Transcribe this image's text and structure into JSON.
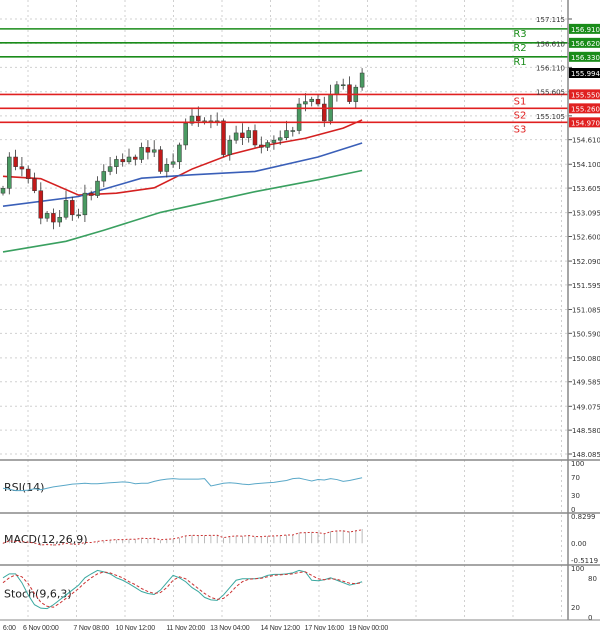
{
  "chart_data": {
    "type": "candlestick",
    "price_axis": {
      "ylim": [
        148.085,
        157.115
      ],
      "ticks": [
        "157.115",
        "156.610",
        "156.110",
        "155.605",
        "155.105",
        "154.610",
        "154.100",
        "153.605",
        "153.095",
        "152.600",
        "152.090",
        "151.595",
        "151.085",
        "150.590",
        "150.080",
        "149.585",
        "149.075",
        "148.580",
        "148.085"
      ]
    },
    "x_tick_labels": [
      "6:00",
      "6 Nov 00:00",
      "7 Nov 08:00",
      "10 Nov 12:00",
      "11 Nov 20:00",
      "13 Nov 04:00",
      "14 Nov 12:00",
      "17 Nov 16:00",
      "19 Nov 00:00"
    ],
    "x_tick_index": [
      1,
      6,
      14,
      21,
      29,
      36,
      44,
      51,
      58
    ],
    "closes": [
      153.6,
      154.25,
      154.05,
      154.0,
      153.8,
      153.55,
      152.98,
      153.08,
      152.9,
      153.0,
      153.35,
      153.05,
      153.05,
      153.5,
      153.45,
      153.75,
      153.95,
      154.05,
      154.2,
      154.15,
      154.25,
      154.2,
      154.45,
      154.35,
      154.4,
      153.95,
      154.1,
      154.15,
      154.5,
      154.95,
      155.1,
      155.0,
      155.0,
      155.0,
      155.0,
      154.3,
      154.6,
      154.75,
      154.65,
      154.8,
      154.5,
      154.45,
      154.55,
      154.6,
      154.65,
      154.8,
      154.8,
      155.35,
      155.4,
      155.45,
      155.35,
      155.0,
      155.55,
      155.75,
      155.75,
      155.4,
      155.7,
      155.994
    ],
    "current_price": "155.994",
    "levels": [
      {
        "name": "R3",
        "value": "156.910",
        "color": "#1a8c1a"
      },
      {
        "name": "R2",
        "value": "156.620",
        "color": "#1a8c1a"
      },
      {
        "name": "R1",
        "value": "156.330",
        "color": "#1a8c1a"
      },
      {
        "name": "S1",
        "value": "155.550",
        "color": "#e02020"
      },
      {
        "name": "S2",
        "value": "155.260",
        "color": "#e02020"
      },
      {
        "name": "S3",
        "value": "154.970",
        "color": "#e02020"
      }
    ],
    "moving_averages": [
      {
        "color": "#d42020",
        "idx": [
          0,
          6,
          12,
          18,
          24,
          30,
          36,
          42,
          48,
          54,
          57
        ],
        "values": [
          153.85,
          153.8,
          153.46,
          153.5,
          153.61,
          154.0,
          154.3,
          154.5,
          154.64,
          154.85,
          155.02
        ]
      },
      {
        "color": "#3a5fb8",
        "idx": [
          0,
          12,
          22,
          30,
          40,
          50,
          57
        ],
        "values": [
          153.23,
          153.43,
          153.81,
          153.88,
          153.95,
          154.25,
          154.54
        ]
      },
      {
        "color": "#3aa060",
        "idx": [
          0,
          10,
          16,
          25,
          40,
          50,
          57
        ],
        "values": [
          152.28,
          152.5,
          152.73,
          153.1,
          153.53,
          153.78,
          153.97
        ]
      }
    ],
    "colors": {
      "bull": "#4a9a62",
      "bear": "#c21a1a",
      "grid": "#d0d0d0"
    },
    "indicators": {
      "rsi": {
        "label": "RSI(14)",
        "ticks": [
          "100",
          "70",
          "30",
          "0"
        ],
        "values": [
          45,
          43,
          40,
          40,
          41,
          44,
          42,
          45,
          48,
          50,
          52,
          54,
          55,
          56,
          55,
          55,
          56,
          57,
          58,
          59,
          58,
          55,
          56,
          56,
          60,
          63,
          65,
          66,
          65,
          65,
          65,
          65,
          66,
          50,
          53,
          56,
          57,
          56,
          54,
          53,
          55,
          56,
          57,
          58,
          60,
          62,
          66,
          67,
          64,
          61,
          64,
          63,
          66,
          64,
          60,
          62,
          65,
          68
        ]
      },
      "macd": {
        "label": "MACD(12,26,9)",
        "ticks": [
          "0.8299",
          "0.00",
          "-0.5119"
        ]
      },
      "stoch": {
        "label": "Stoch(9,6,3)",
        "ticks": [
          "100",
          "80",
          "20",
          "0"
        ],
        "k": [
          80,
          88,
          88,
          70,
          45,
          25,
          18,
          17,
          25,
          35,
          45,
          55,
          65,
          80,
          88,
          95,
          92,
          88,
          80,
          75,
          68,
          60,
          52,
          48,
          46,
          55,
          70,
          85,
          80,
          72,
          60,
          52,
          40,
          35,
          34,
          45,
          60,
          75,
          78,
          78,
          78,
          80,
          85,
          87,
          87,
          88,
          90,
          95,
          92,
          75,
          74,
          76,
          80,
          75,
          70,
          65,
          68,
          72
        ],
        "d": [
          70,
          80,
          86,
          82,
          68,
          48,
          30,
          22,
          20,
          28,
          38,
          48,
          58,
          70,
          80,
          88,
          92,
          90,
          85,
          80,
          72,
          66,
          58,
          52,
          48,
          50,
          60,
          75,
          82,
          78,
          68,
          58,
          48,
          40,
          36,
          38,
          48,
          62,
          72,
          77,
          78,
          79,
          82,
          85,
          86,
          87,
          88,
          91,
          92,
          85,
          78,
          76,
          78,
          77,
          73,
          69,
          68,
          70
        ]
      }
    }
  }
}
